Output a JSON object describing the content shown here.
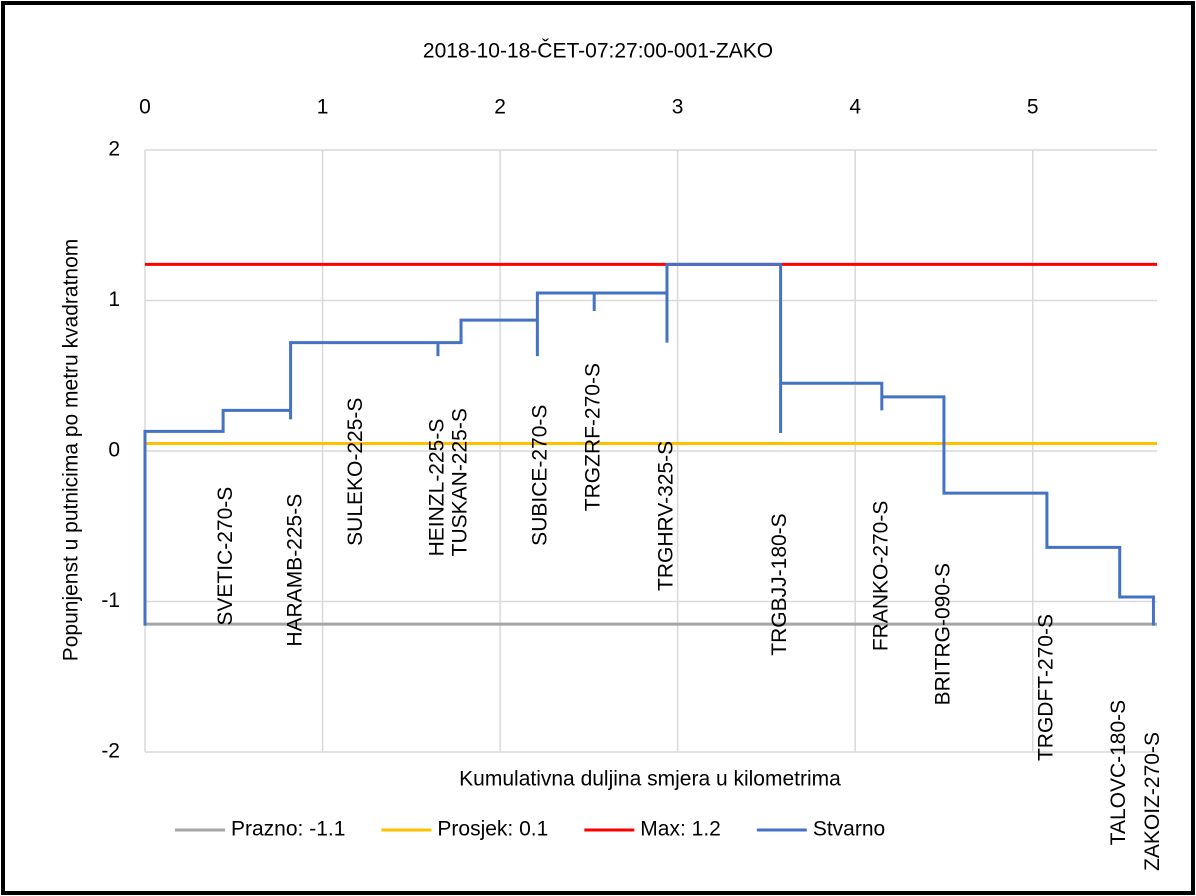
{
  "chart_data": {
    "type": "line",
    "title": "2018-10-18-ČET-07:27:00-001-ZAKO",
    "x_label": "Kumulativna duljina smjera u kilometrima",
    "y_label": "Popunjenst u putnicima po metru kvadratnom",
    "xlim": [
      0,
      5.7
    ],
    "xticks": [
      0,
      1,
      2,
      3,
      4,
      5
    ],
    "ylim": [
      -2,
      2
    ],
    "yticks": [
      -2,
      -1,
      0,
      1,
      2
    ],
    "grid": true,
    "legend": "bottom",
    "series": [
      {
        "name": "Prazno: -1.1",
        "color": "#a5a5a5",
        "x": [
          0,
          5.7
        ],
        "values": [
          -1.15,
          -1.15
        ]
      },
      {
        "name": "Prosjek: 0.1",
        "color": "#ffc000",
        "x": [
          0,
          5.7
        ],
        "values": [
          0.05,
          0.05
        ]
      },
      {
        "name": "Max: 1.2",
        "color": "#ff0000",
        "x": [
          0,
          5.7
        ],
        "values": [
          1.24,
          1.24
        ]
      },
      {
        "name": "Stvarno",
        "color": "#4472c4",
        "x": [
          0,
          0,
          0.44,
          0.44,
          0.82,
          0.82,
          0.82,
          1.65,
          1.65,
          1.65,
          1.78,
          1.78,
          2.21,
          2.21,
          2.21,
          2.53,
          2.53,
          2.53,
          2.94,
          2.94,
          2.94,
          3.58,
          3.58,
          3.58,
          4.15,
          4.15,
          4.15,
          4.5,
          4.5,
          5.08,
          5.08,
          5.49,
          5.49,
          5.68,
          5.68
        ],
        "values": [
          -1.16,
          0.13,
          0.13,
          0.27,
          0.27,
          0.21,
          0.72,
          0.72,
          0.63,
          0.72,
          0.72,
          0.87,
          0.87,
          0.63,
          1.05,
          1.05,
          0.93,
          1.05,
          1.05,
          0.72,
          1.24,
          1.24,
          0.12,
          0.45,
          0.45,
          0.27,
          0.36,
          0.36,
          -0.28,
          -0.28,
          -0.64,
          -0.64,
          -0.97,
          -0.97,
          -1.16
        ]
      }
    ],
    "annotations": [
      {
        "text": "SVETIC-270-S",
        "x": 0.46,
        "y": -1.16
      },
      {
        "text": "HARAMB-225-S",
        "x": 0.85,
        "y": -1.3
      },
      {
        "text": "SULEKO-225-S",
        "x": 1.19,
        "y": -0.63
      },
      {
        "text": "HEINZL-225-S",
        "x": 1.65,
        "y": -0.7
      },
      {
        "text": "TUSKAN-225-S",
        "x": 1.78,
        "y": -0.7
      },
      {
        "text": "SUBICE-270-S",
        "x": 2.23,
        "y": -0.63
      },
      {
        "text": "TRGZRF-270-S",
        "x": 2.53,
        "y": -0.4
      },
      {
        "text": "TRGHRV-325-S",
        "x": 2.94,
        "y": -0.93
      },
      {
        "text": "TRGBJJ-180-S",
        "x": 3.58,
        "y": -1.36
      },
      {
        "text": "FRANKO-270-S",
        "x": 4.15,
        "y": -1.33
      },
      {
        "text": "BRITRG-090-S",
        "x": 4.5,
        "y": -1.69
      },
      {
        "text": "TRGDFT-270-S",
        "x": 5.08,
        "y": -2.06
      },
      {
        "text": "TALOVC-180-S",
        "x": 5.49,
        "y": -2.62
      },
      {
        "text": "ZAKOIZ-270-S",
        "x": 5.68,
        "y": -2.79
      }
    ]
  }
}
